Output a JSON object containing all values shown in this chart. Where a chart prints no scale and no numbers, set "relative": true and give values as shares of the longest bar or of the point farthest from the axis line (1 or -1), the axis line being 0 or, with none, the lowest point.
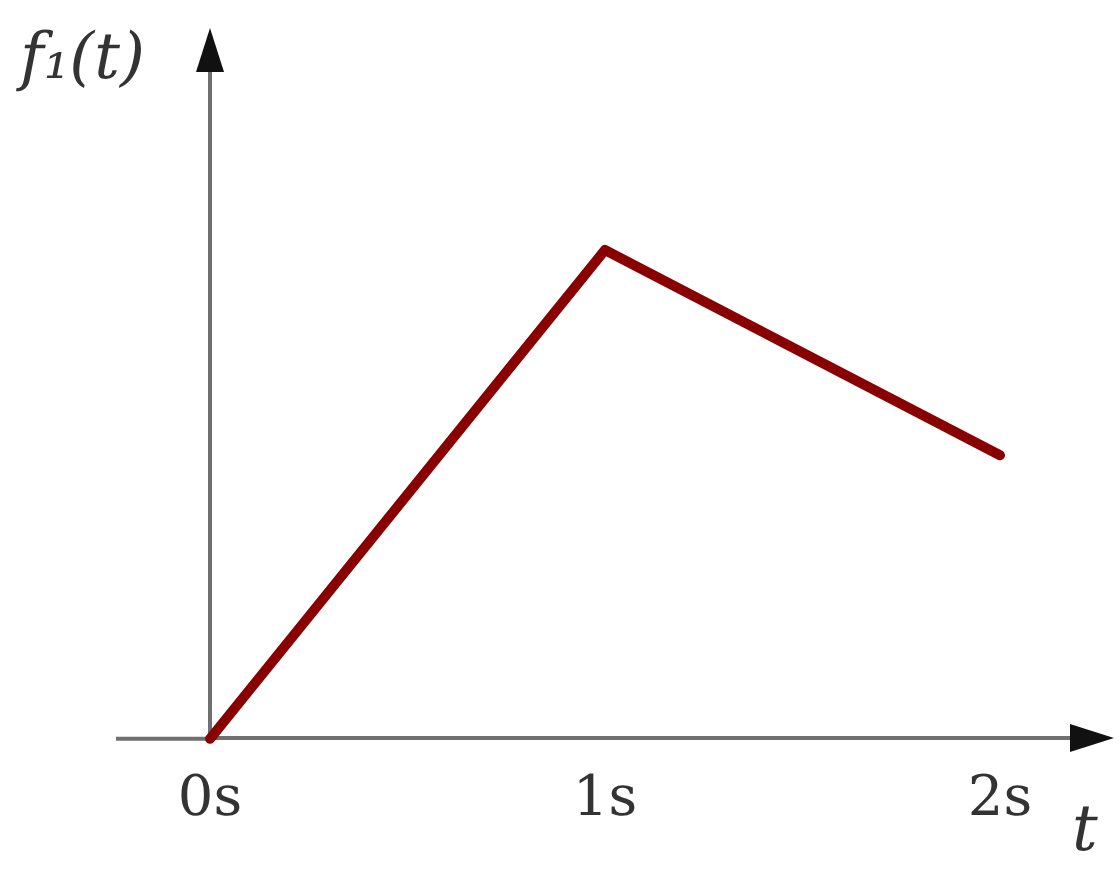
{
  "chart_data": {
    "type": "line",
    "xlabel": "t",
    "ylabel": "f₁(t)",
    "categories": [
      "0s",
      "1s",
      "2s"
    ],
    "relative": true,
    "series": [
      {
        "color": "#880000",
        "values": [
          0,
          1,
          0.58
        ]
      }
    ],
    "grid": false,
    "legend": false,
    "marker": "none",
    "line_style": "solid"
  }
}
